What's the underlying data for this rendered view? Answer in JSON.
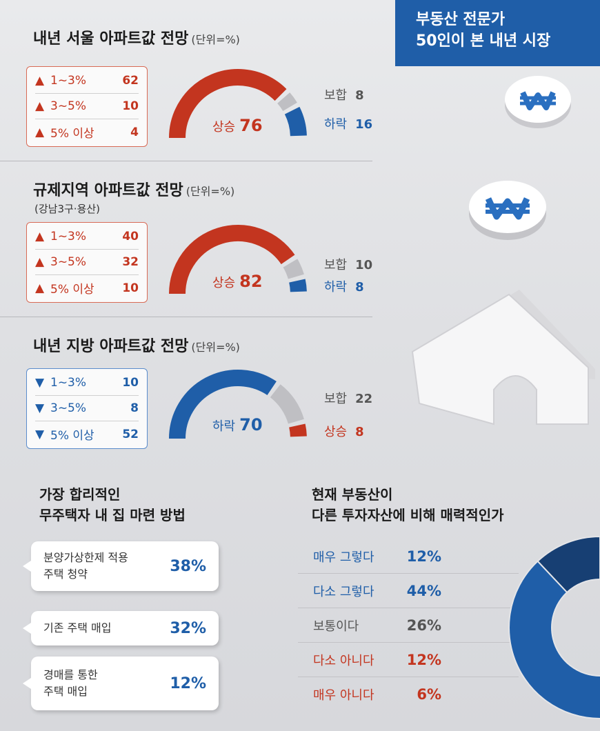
{
  "banner": {
    "line1": "부동산 전문가",
    "line2": "50인이 본 내년 시장"
  },
  "unit_label": "(단위=%)",
  "sections": [
    {
      "title": "내년 서울 아파트값 전망",
      "subtitle": "",
      "direction": "up",
      "breakdown": [
        {
          "label": "1~3%",
          "value": 62
        },
        {
          "label": "3~5%",
          "value": 10
        },
        {
          "label": "5% 이상",
          "value": 4
        }
      ],
      "main": {
        "label": "상승",
        "value": 76
      },
      "neutral": {
        "label": "보합",
        "value": 8
      },
      "opposite": {
        "label": "하락",
        "value": 16
      }
    },
    {
      "title": "규제지역 아파트값 전망",
      "subtitle": "(강남3구·용산)",
      "direction": "up",
      "breakdown": [
        {
          "label": "1~3%",
          "value": 40
        },
        {
          "label": "3~5%",
          "value": 32
        },
        {
          "label": "5% 이상",
          "value": 10
        }
      ],
      "main": {
        "label": "상승",
        "value": 82
      },
      "neutral": {
        "label": "보합",
        "value": 10
      },
      "opposite": {
        "label": "하락",
        "value": 8
      }
    },
    {
      "title": "내년 지방 아파트값 전망",
      "subtitle": "",
      "direction": "down",
      "breakdown": [
        {
          "label": "1~3%",
          "value": 10
        },
        {
          "label": "3~5%",
          "value": 8
        },
        {
          "label": "5% 이상",
          "value": 52
        }
      ],
      "main": {
        "label": "하락",
        "value": 70
      },
      "neutral": {
        "label": "보합",
        "value": 22
      },
      "opposite": {
        "label": "상승",
        "value": 8
      }
    }
  ],
  "methods": {
    "title_line1": "가장 합리적인",
    "title_line2": "무주택자 내 집 마련 방법",
    "items": [
      {
        "label_line1": "분양가상한제 적용",
        "label_line2": "주택 청약",
        "percent": "38%"
      },
      {
        "label_line1": "기존 주택 매입",
        "label_line2": "",
        "percent": "32%"
      },
      {
        "label_line1": "경매를 통한",
        "label_line2": "주택 매입",
        "percent": "12%"
      }
    ]
  },
  "attractiveness": {
    "title_line1": "현재 부동산이",
    "title_line2": "다른 투자자산에 비해 매력적인가",
    "items": [
      {
        "label": "매우 그렇다",
        "percent": "12%",
        "value": 12
      },
      {
        "label": "다소 그렇다",
        "percent": "44%",
        "value": 44
      },
      {
        "label": "보통이다",
        "percent": "26%",
        "value": 26
      },
      {
        "label": "다소 아니다",
        "percent": "12%",
        "value": 12
      },
      {
        "label": "매우 아니다",
        "percent": "6%",
        "value": 6
      }
    ]
  },
  "colors": {
    "red": "#c3351f",
    "blue": "#1f5ea8",
    "gray": "#bfbfc3",
    "dark_blue": "#173f73",
    "dark_red": "#8e2416"
  },
  "chart_data": [
    {
      "type": "pie",
      "title": "내년 서울 아파트값 전망",
      "categories": [
        "상승",
        "보합",
        "하락"
      ],
      "values": [
        76,
        8,
        16
      ]
    },
    {
      "type": "pie",
      "title": "규제지역 아파트값 전망",
      "categories": [
        "상승",
        "보합",
        "하락"
      ],
      "values": [
        82,
        10,
        8
      ]
    },
    {
      "type": "pie",
      "title": "내년 지방 아파트값 전망",
      "categories": [
        "하락",
        "보합",
        "상승"
      ],
      "values": [
        70,
        22,
        8
      ]
    },
    {
      "type": "bar",
      "title": "가장 합리적인 무주택자 내 집 마련 방법",
      "categories": [
        "분양가상한제 적용 주택 청약",
        "기존 주택 매입",
        "경매를 통한 주택 매입"
      ],
      "values": [
        38,
        32,
        12
      ]
    },
    {
      "type": "pie",
      "title": "현재 부동산이 다른 투자자산에 비해 매력적인가",
      "categories": [
        "매우 그렇다",
        "다소 그렇다",
        "보통이다",
        "다소 아니다",
        "매우 아니다"
      ],
      "values": [
        12,
        44,
        26,
        12,
        6
      ]
    }
  ]
}
